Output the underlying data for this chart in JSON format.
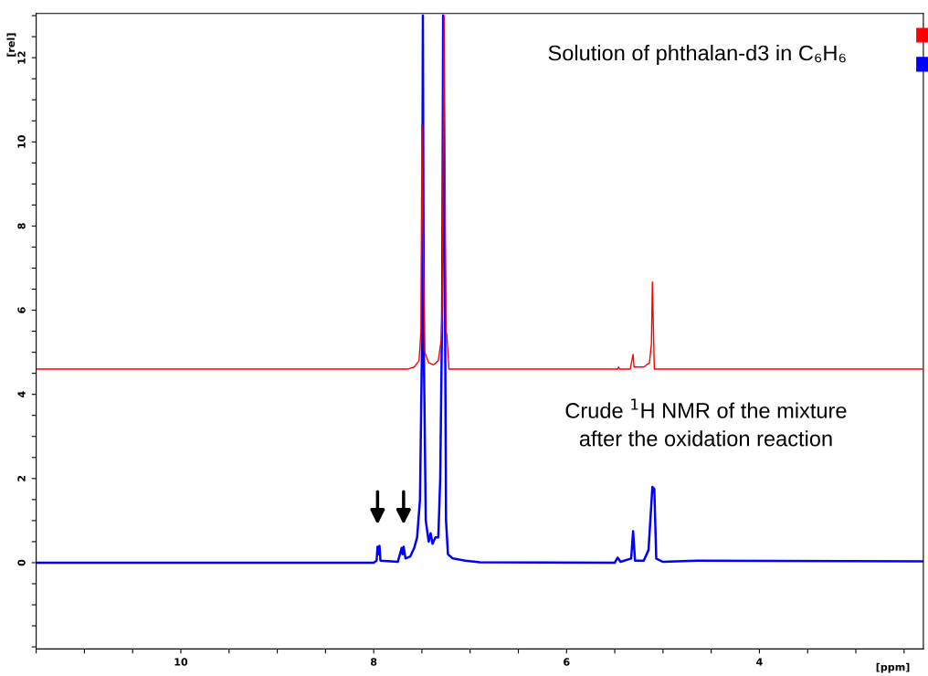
{
  "chart_data": {
    "type": "line",
    "xlabel": "[ppm]",
    "ylabel": "[rel]",
    "xlim": [
      11.5,
      2.3
    ],
    "ylim": [
      -2.05,
      13.05
    ],
    "xticks": [
      {
        "value": 11.5,
        "label": null
      },
      {
        "value": 11,
        "label": null
      },
      {
        "value": 10.5,
        "label": null
      },
      10,
      {
        "value": 9.5,
        "label": null
      },
      {
        "value": 9,
        "label": null
      },
      {
        "value": 8.5,
        "label": null
      },
      8,
      {
        "value": 7.5,
        "label": null
      },
      {
        "value": 7,
        "label": null
      },
      {
        "value": 6.5,
        "label": null
      },
      6,
      {
        "value": 5.5,
        "label": null
      },
      {
        "value": 5,
        "label": null
      },
      {
        "value": 4.5,
        "label": null
      },
      4,
      {
        "value": 3.5,
        "label": null
      },
      {
        "value": 3,
        "label": null
      },
      {
        "value": 2.5,
        "label": null
      }
    ],
    "yticks": [
      {
        "value": -2,
        "label": null
      },
      {
        "value": -1.5,
        "label": null
      },
      {
        "value": -1,
        "label": null
      },
      {
        "value": -0.5,
        "label": null
      },
      0,
      {
        "value": 0.5,
        "label": null
      },
      {
        "value": 1,
        "label": null
      },
      {
        "value": 1.5,
        "label": null
      },
      2,
      {
        "value": 2.5,
        "label": null
      },
      {
        "value": 3,
        "label": null
      },
      {
        "value": 3.5,
        "label": null
      },
      4,
      {
        "value": 4.5,
        "label": null
      },
      {
        "value": 5,
        "label": null
      },
      {
        "value": 5.5,
        "label": null
      },
      6,
      {
        "value": 6.5,
        "label": null
      },
      {
        "value": 7,
        "label": null
      },
      {
        "value": 7.5,
        "label": null
      },
      8,
      {
        "value": 8.5,
        "label": null
      },
      {
        "value": 9,
        "label": null
      },
      {
        "value": 9.5,
        "label": null
      },
      10,
      {
        "value": 10.5,
        "label": null
      },
      {
        "value": 11,
        "label": null
      },
      {
        "value": 11.5,
        "label": null
      },
      12,
      {
        "value": 12.5,
        "label": null
      },
      {
        "value": 13,
        "label": null
      }
    ],
    "annotations": [
      "Solution of phthalan-d3 in C₆H₆",
      "Crude $^{1}$H NMR of the mixture\nafter the oxidation reaction"
    ],
    "grid": false,
    "legend": false,
    "marker": "none",
    "line_style": "solid",
    "series": [
      {
        "color": "#ff0000",
        "x": [
          11.5,
          7.65,
          7.58,
          7.53,
          7.51,
          7.5,
          7.49,
          7.47,
          7.43,
          7.38,
          7.33,
          7.3,
          7.29,
          7.27,
          7.25,
          7.24,
          7.22,
          7.0,
          5.47,
          5.46,
          5.45,
          5.34,
          5.31,
          5.3,
          5.2,
          5.14,
          5.12,
          5.11,
          5.09,
          2.3
        ],
        "values": [
          4.6,
          4.6,
          4.65,
          4.8,
          5.5,
          10.4,
          8.0,
          5.0,
          4.75,
          4.7,
          4.8,
          5.3,
          6.0,
          13.0,
          5.5,
          5.4,
          4.6,
          4.6,
          4.6,
          4.65,
          4.6,
          4.6,
          4.95,
          4.65,
          4.65,
          4.75,
          5.2,
          6.67,
          4.6,
          4.6
        ]
      },
      {
        "color": "#0000ff",
        "x": [
          11.5,
          8.0,
          7.97,
          7.96,
          7.95,
          7.94,
          7.93,
          7.75,
          7.71,
          7.7,
          7.69,
          7.67,
          7.62,
          7.58,
          7.55,
          7.52,
          7.5,
          7.49,
          7.48,
          7.46,
          7.43,
          7.41,
          7.39,
          7.36,
          7.33,
          7.31,
          7.29,
          7.28,
          7.26,
          7.25,
          7.23,
          7.18,
          7.05,
          6.9,
          5.5,
          5.47,
          5.44,
          5.33,
          5.31,
          5.29,
          5.2,
          5.15,
          5.11,
          5.09,
          5.07,
          5.0,
          4.65,
          2.3
        ],
        "values": [
          0,
          0,
          0.05,
          0.38,
          0.2,
          0.4,
          0.05,
          0.02,
          0.35,
          0.2,
          0.38,
          0.1,
          0.15,
          0.35,
          0.6,
          1.5,
          5.0,
          13.0,
          5.0,
          1.0,
          0.5,
          0.7,
          0.45,
          0.6,
          0.6,
          2.0,
          6.0,
          13.0,
          6.0,
          1.0,
          0.2,
          0.1,
          0.05,
          0.01,
          0,
          0.12,
          0.02,
          0.1,
          0.75,
          0.05,
          0.05,
          0.3,
          1.8,
          1.75,
          0.1,
          0.02,
          0.05,
          0.03
        ]
      }
    ]
  }
}
